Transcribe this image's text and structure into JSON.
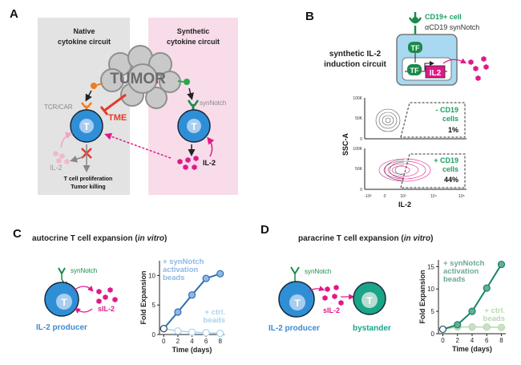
{
  "colors": {
    "t_cell_blue": "#2f8fd6",
    "synnotch_green": "#1a8a4a",
    "il2_pink": "#e0198a",
    "tme_red": "#e8392a",
    "bystander_teal": "#1aa488",
    "native_bg": "#e3e3e3",
    "synthetic_bg": "#f8dcea"
  },
  "panel_a": {
    "label": "A",
    "native_title": [
      "Native",
      "cytokine circuit"
    ],
    "synthetic_title": [
      "Synthetic",
      "cytokine circuit"
    ],
    "tumor": "TUMOR",
    "tcr_car": "TCR/CAR",
    "tme": "TME",
    "synnotch": "synNotch",
    "t": "T",
    "il2_left": "IL-2",
    "il2_right": "IL-2",
    "outcome": [
      "T cell proliferation",
      "Tumor killing"
    ]
  },
  "panel_b": {
    "label": "B",
    "cd19_cell": "CD19+ cell",
    "synnotch": "αCD19 synNotch",
    "circuit_title": [
      "synthetic IL-2",
      "induction circuit"
    ],
    "tf": "TF",
    "il2_gene": "IL2",
    "flow": {
      "ylabel": "SSC-A",
      "xlabel": "IL-2",
      "yticks": [
        "0",
        "50K",
        "100K"
      ],
      "xticks": [
        "-10³",
        "0",
        "10³",
        "10⁴",
        "10⁵"
      ],
      "plots": [
        {
          "label": [
            "- CD19",
            "cells"
          ],
          "percent": "1%"
        },
        {
          "label": [
            "+ CD19",
            "cells"
          ],
          "percent": "44%"
        }
      ]
    }
  },
  "panel_c": {
    "label": "C",
    "title_prefix": "autocrine T cell expansion (",
    "title_italic": "in vitro",
    "title_suffix": ")",
    "synnotch": "synNotch",
    "sil2": "sIL-2",
    "producer": "IL-2 producer",
    "t": "T"
  },
  "panel_d": {
    "label": "D",
    "title_prefix": "paracrine T cell expansion (",
    "title_italic": "in vitro",
    "title_suffix": ")",
    "synnotch": "synNotch",
    "sil2": "sIL-2",
    "producer": "IL-2 producer",
    "bystander": "bystander",
    "t": "T"
  },
  "chart_data": [
    {
      "type": "line",
      "xlabel": "Time (days)",
      "ylabel": "Fold Expansion",
      "x": [
        0,
        2,
        4,
        6,
        8
      ],
      "xticks": [
        "0",
        "2",
        "4",
        "6",
        "8"
      ],
      "yticks": [
        "0",
        "5",
        "10"
      ],
      "ylim": [
        0,
        12.5
      ],
      "xlim": [
        -0.6,
        8.6
      ],
      "series": [
        {
          "name": "+ synNotch activation beads",
          "label_lines": [
            "+ synNotch",
            "activation",
            "beads"
          ],
          "values": [
            1,
            3.8,
            6.7,
            9.5,
            10.3
          ],
          "color": "#2f6fb0",
          "fill": "#8fb8e6"
        },
        {
          "name": "+ ctrl. beads",
          "label_lines": [
            "+ ctrl.",
            "beads"
          ],
          "values": [
            1,
            0.6,
            0.4,
            0.3,
            0.2
          ],
          "color": "#a8d4ef",
          "fill": "#ffffff"
        }
      ]
    },
    {
      "type": "line",
      "xlabel": "Time (days)",
      "ylabel": "Fold Expansion",
      "x": [
        0,
        2,
        4,
        6,
        8
      ],
      "xticks": [
        "0",
        "2",
        "4",
        "6",
        "8"
      ],
      "yticks": [
        "0",
        "5",
        "10",
        "15"
      ],
      "ylim": [
        0,
        16.5
      ],
      "xlim": [
        -0.6,
        8.6
      ],
      "series": [
        {
          "name": "+ synNotch activation beads",
          "label_lines": [
            "+ synNotch",
            "activation",
            "beads"
          ],
          "values": [
            1,
            2,
            5,
            10.2,
            15.5
          ],
          "color": "#15866a",
          "fill": "#6aaa98"
        },
        {
          "name": "+ ctrl. beads",
          "label_lines": [
            "+ ctrl.",
            "beads"
          ],
          "values": [
            1,
            1.5,
            1.5,
            1.5,
            1.4
          ],
          "color": "#b6d9b0",
          "fill": "#c8e3c2"
        }
      ]
    }
  ]
}
